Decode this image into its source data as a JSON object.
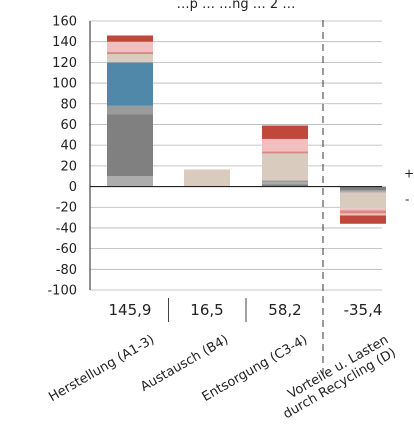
{
  "chart_data": {
    "type": "bar",
    "title": "…p … …ng … 2 …",
    "ylim": [
      -100,
      160
    ],
    "y_ticks": [
      160,
      140,
      120,
      100,
      80,
      60,
      40,
      20,
      0,
      -20,
      -40,
      -60,
      -80,
      -100
    ],
    "categories": [
      {
        "label": "Herstellung (A1-3)",
        "lines": [
          "Herstellung (A1-3)"
        ],
        "total": "145,9"
      },
      {
        "label": "Austausch (B4)",
        "lines": [
          "Austausch (B4)"
        ],
        "total": "16,5"
      },
      {
        "label": "Entsorgung (C3-4)",
        "lines": [
          "Entsorgung (C3-4)"
        ],
        "total": "58,2"
      },
      {
        "label": "Vorteile u. Lasten durch Recycling (D)",
        "lines": [
          "Vorteile u. Lasten",
          "durch Recycling (D)"
        ],
        "total": "-35,4"
      }
    ],
    "stacks": [
      [
        {
          "value": 10,
          "color": "#adadad"
        },
        {
          "value": 60,
          "color": "#808080"
        },
        {
          "value": 8,
          "color": "#9b9b9b"
        },
        {
          "value": 42,
          "color": "#4f88a8"
        },
        {
          "value": 8,
          "color": "#d9cbbd"
        },
        {
          "value": 2,
          "color": "#d98a84"
        },
        {
          "value": 10,
          "color": "#f0c0c0"
        },
        {
          "value": 6,
          "color": "#c0483a"
        }
      ],
      [
        {
          "value": 16.5,
          "color": "#d9cbbd"
        }
      ],
      [
        {
          "value": 2,
          "color": "#808080"
        },
        {
          "value": 2,
          "color": "#adadad"
        },
        {
          "value": 2,
          "color": "#9b9b9b"
        },
        {
          "value": 26,
          "color": "#d9cbbd"
        },
        {
          "value": 2,
          "color": "#d98a84"
        },
        {
          "value": 12,
          "color": "#f0c0c0"
        },
        {
          "value": 13,
          "color": "#c0483a"
        }
      ],
      [
        {
          "value": -4,
          "color": "#808080"
        },
        {
          "value": -2,
          "color": "#adadad"
        },
        {
          "value": -15,
          "color": "#d9cbbd"
        },
        {
          "value": -2,
          "color": "#f0c0c0"
        },
        {
          "value": -3,
          "color": "#d98a84"
        },
        {
          "value": -2,
          "color": "#f0c0c0"
        },
        {
          "value": -8,
          "color": "#c0483a"
        }
      ]
    ],
    "divider_after_category": 2,
    "sign_markers": {
      "positive": "+",
      "negative": "-"
    },
    "grid": true
  }
}
